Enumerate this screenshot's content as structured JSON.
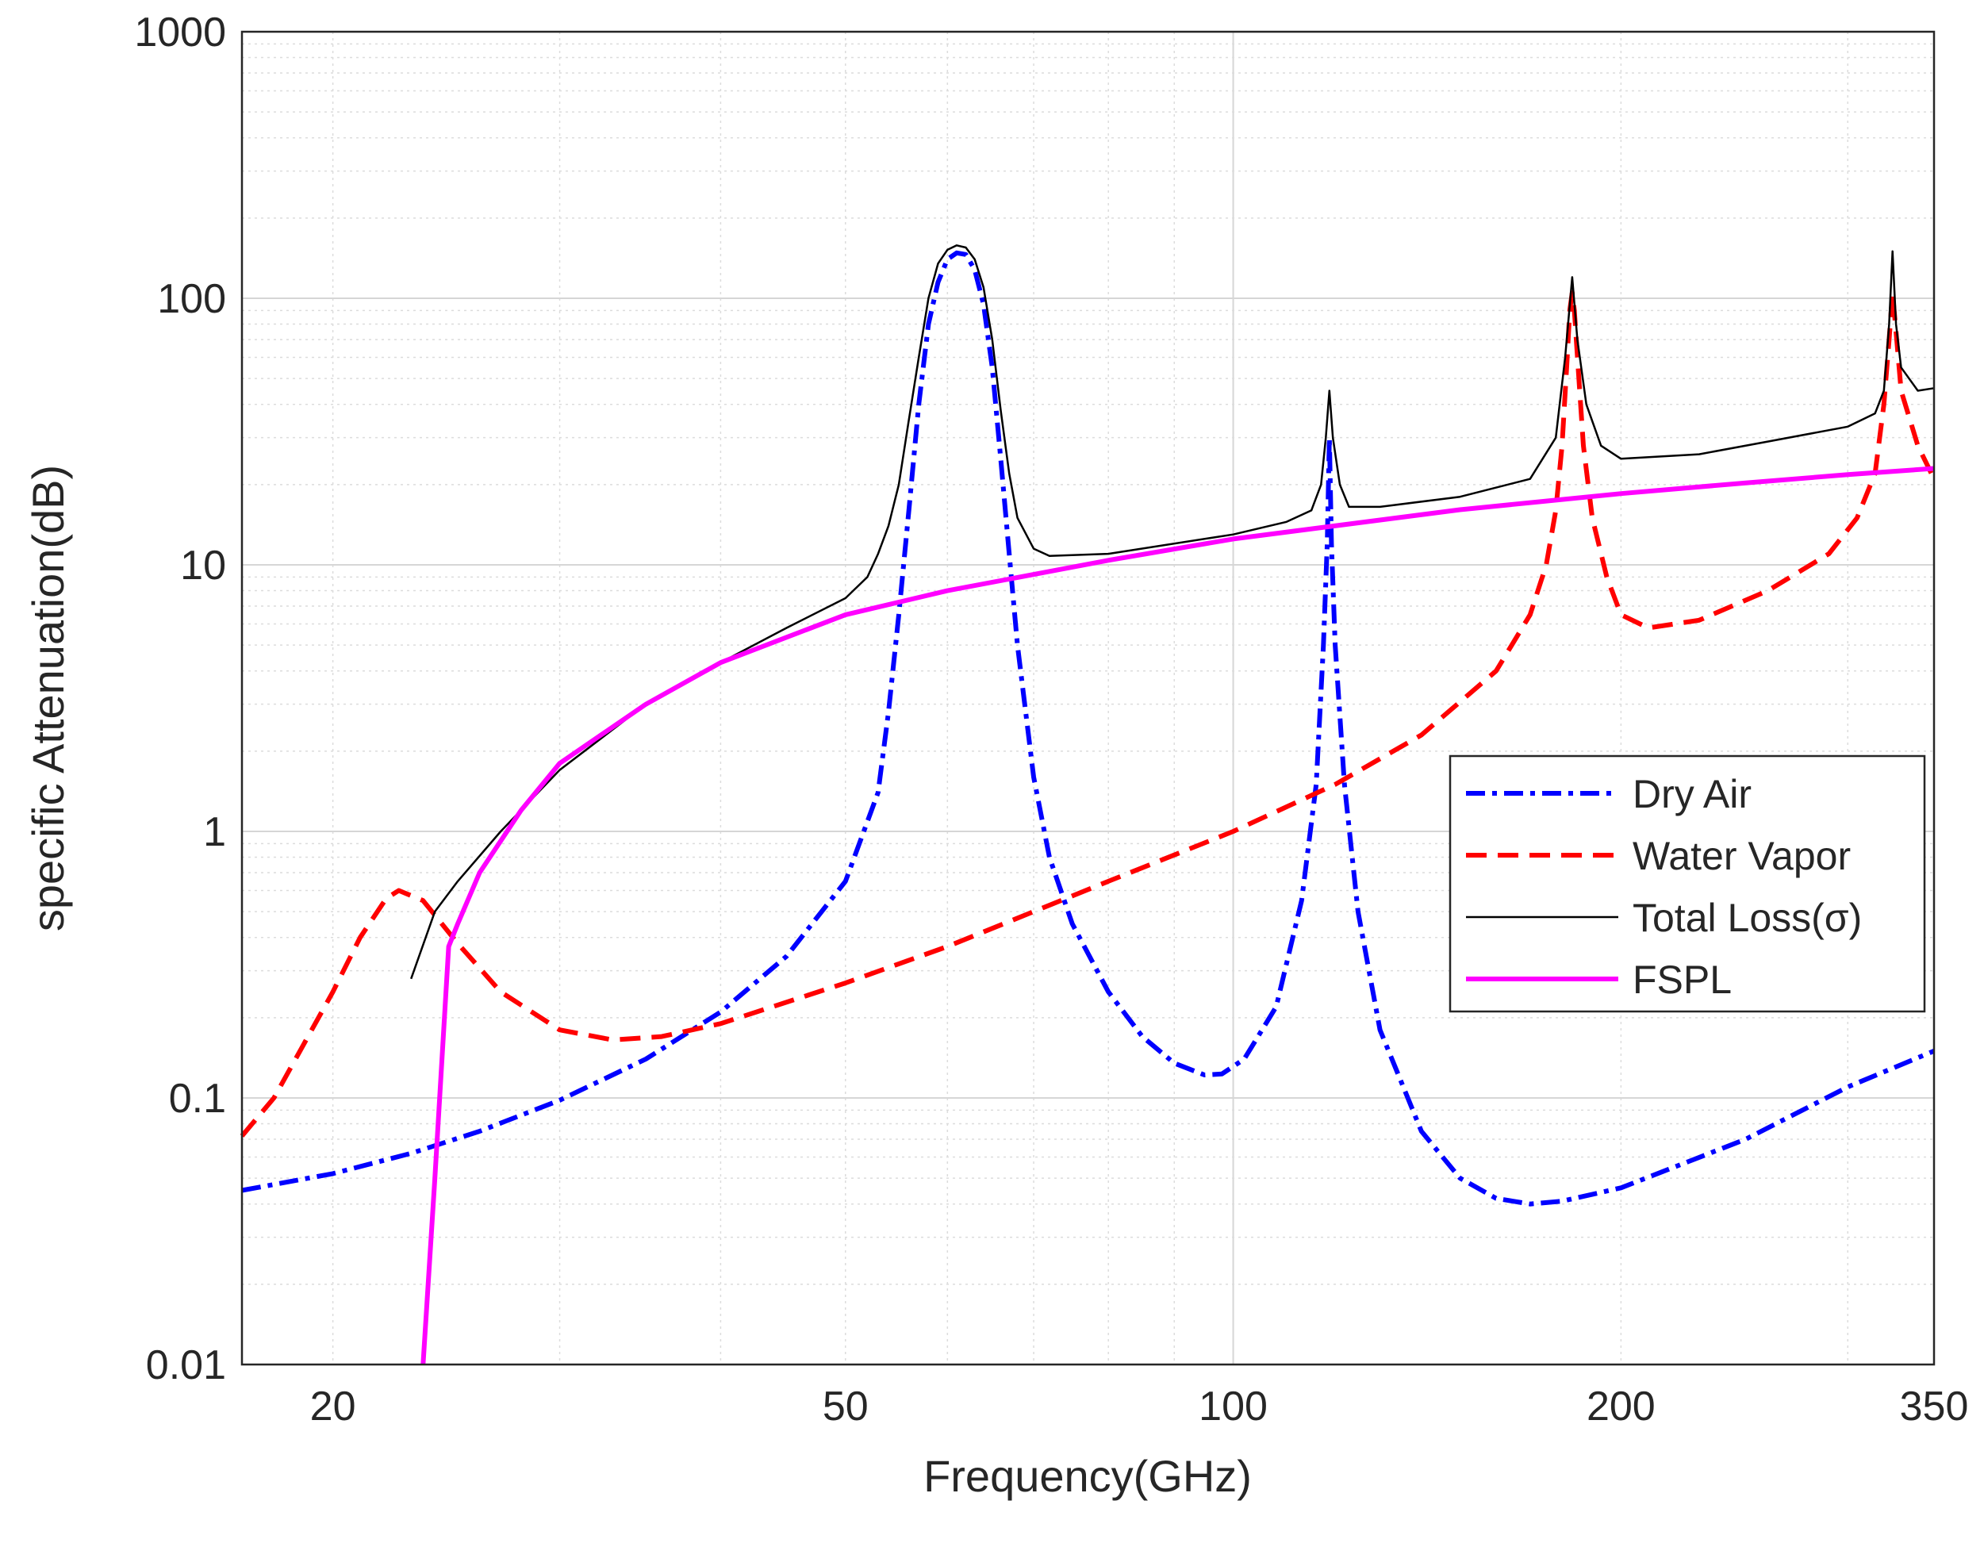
{
  "chart_data": {
    "type": "line",
    "title": "",
    "xlabel": "Frequency(GHz)",
    "ylabel": "specific Attenuation(dB)",
    "xscale": "log",
    "yscale": "log",
    "xlim": [
      17,
      350
    ],
    "ylim": [
      0.01,
      1000
    ],
    "xticks": [
      {
        "value": 20,
        "label": "20"
      },
      {
        "value": 50,
        "label": "50"
      },
      {
        "value": 100,
        "label": "100"
      },
      {
        "value": 200,
        "label": "200"
      },
      {
        "value": 350,
        "label": "350"
      }
    ],
    "yticks": [
      {
        "value": 0.01,
        "label": "0.01"
      },
      {
        "value": 0.1,
        "label": "0.1"
      },
      {
        "value": 1,
        "label": "1"
      },
      {
        "value": 10,
        "label": "10"
      },
      {
        "value": 100,
        "label": "100"
      },
      {
        "value": 1000,
        "label": "1000"
      }
    ],
    "grid": true,
    "legend_position": "right",
    "series": [
      {
        "name": "Dry Air",
        "color": "#0000ff",
        "dash": "dashdot",
        "points": [
          [
            17,
            0.045
          ],
          [
            20,
            0.052
          ],
          [
            23,
            0.062
          ],
          [
            26,
            0.075
          ],
          [
            30,
            0.098
          ],
          [
            35,
            0.14
          ],
          [
            40,
            0.21
          ],
          [
            45,
            0.34
          ],
          [
            50,
            0.65
          ],
          [
            53,
            1.4
          ],
          [
            54,
            2.8
          ],
          [
            55,
            6.5
          ],
          [
            56,
            16
          ],
          [
            57,
            40
          ],
          [
            58,
            80
          ],
          [
            59,
            115
          ],
          [
            60,
            140
          ],
          [
            61,
            148
          ],
          [
            62,
            146
          ],
          [
            63,
            128
          ],
          [
            64,
            95
          ],
          [
            65,
            55
          ],
          [
            66,
            25
          ],
          [
            67,
            11
          ],
          [
            68,
            5
          ],
          [
            70,
            1.6
          ],
          [
            72,
            0.8
          ],
          [
            75,
            0.45
          ],
          [
            80,
            0.25
          ],
          [
            85,
            0.17
          ],
          [
            90,
            0.135
          ],
          [
            95,
            0.122
          ],
          [
            98,
            0.123
          ],
          [
            102,
            0.14
          ],
          [
            108,
            0.22
          ],
          [
            113,
            0.55
          ],
          [
            116,
            1.5
          ],
          [
            117.5,
            5
          ],
          [
            118.3,
            12
          ],
          [
            118.75,
            30
          ],
          [
            119.2,
            12
          ],
          [
            120,
            5
          ],
          [
            122,
            1.5
          ],
          [
            125,
            0.5
          ],
          [
            130,
            0.18
          ],
          [
            140,
            0.075
          ],
          [
            150,
            0.05
          ],
          [
            160,
            0.042
          ],
          [
            170,
            0.04
          ],
          [
            180,
            0.041
          ],
          [
            200,
            0.046
          ],
          [
            250,
            0.07
          ],
          [
            300,
            0.11
          ],
          [
            350,
            0.15
          ]
        ]
      },
      {
        "name": "Water Vapor",
        "color": "#ff0000",
        "dash": "dashed",
        "points": [
          [
            17,
            0.072
          ],
          [
            18,
            0.1
          ],
          [
            19,
            0.16
          ],
          [
            20,
            0.25
          ],
          [
            21,
            0.4
          ],
          [
            22,
            0.56
          ],
          [
            22.5,
            0.6
          ],
          [
            23.5,
            0.55
          ],
          [
            25,
            0.38
          ],
          [
            27,
            0.25
          ],
          [
            30,
            0.18
          ],
          [
            33,
            0.165
          ],
          [
            36,
            0.17
          ],
          [
            40,
            0.19
          ],
          [
            50,
            0.27
          ],
          [
            60,
            0.37
          ],
          [
            70,
            0.5
          ],
          [
            80,
            0.65
          ],
          [
            100,
            1.0
          ],
          [
            120,
            1.5
          ],
          [
            140,
            2.3
          ],
          [
            160,
            4
          ],
          [
            170,
            6.5
          ],
          [
            175,
            10
          ],
          [
            178,
            16
          ],
          [
            180,
            28
          ],
          [
            181.5,
            55
          ],
          [
            182.5,
            90
          ],
          [
            183.3,
            105
          ],
          [
            184,
            90
          ],
          [
            185.5,
            50
          ],
          [
            187,
            28
          ],
          [
            190,
            15
          ],
          [
            195,
            9
          ],
          [
            200,
            6.5
          ],
          [
            210,
            5.8
          ],
          [
            230,
            6.2
          ],
          [
            260,
            8
          ],
          [
            290,
            11
          ],
          [
            305,
            15
          ],
          [
            315,
            22
          ],
          [
            320,
            40
          ],
          [
            323,
            70
          ],
          [
            325,
            105
          ],
          [
            327,
            75
          ],
          [
            330,
            45
          ],
          [
            340,
            28
          ],
          [
            350,
            21
          ]
        ]
      },
      {
        "name": "Total Loss(σ)",
        "color": "#000000",
        "dash": "solid",
        "points": [
          [
            23,
            0.28
          ],
          [
            24,
            0.5
          ],
          [
            25,
            0.65
          ],
          [
            27,
            1.0
          ],
          [
            30,
            1.7
          ],
          [
            35,
            3.0
          ],
          [
            40,
            4.3
          ],
          [
            45,
            5.8
          ],
          [
            50,
            7.5
          ],
          [
            52,
            9
          ],
          [
            53,
            11
          ],
          [
            54,
            14
          ],
          [
            55,
            20
          ],
          [
            56,
            35
          ],
          [
            57,
            60
          ],
          [
            58,
            100
          ],
          [
            59,
            135
          ],
          [
            60,
            152
          ],
          [
            61,
            158
          ],
          [
            62,
            155
          ],
          [
            63,
            140
          ],
          [
            64,
            110
          ],
          [
            65,
            70
          ],
          [
            66,
            38
          ],
          [
            67,
            22
          ],
          [
            68,
            15
          ],
          [
            70,
            11.5
          ],
          [
            72,
            10.8
          ],
          [
            80,
            11
          ],
          [
            100,
            13
          ],
          [
            110,
            14.5
          ],
          [
            115,
            16
          ],
          [
            117,
            20
          ],
          [
            118,
            30
          ],
          [
            118.75,
            45
          ],
          [
            119.5,
            30
          ],
          [
            121,
            20
          ],
          [
            123,
            16.5
          ],
          [
            130,
            16.5
          ],
          [
            150,
            18
          ],
          [
            170,
            21
          ],
          [
            178,
            30
          ],
          [
            181,
            60
          ],
          [
            183.3,
            120
          ],
          [
            185,
            70
          ],
          [
            188,
            40
          ],
          [
            193,
            28
          ],
          [
            200,
            25
          ],
          [
            230,
            26
          ],
          [
            260,
            29
          ],
          [
            300,
            33
          ],
          [
            315,
            37
          ],
          [
            320,
            45
          ],
          [
            323,
            80
          ],
          [
            325,
            150
          ],
          [
            327,
            80
          ],
          [
            330,
            55
          ],
          [
            340,
            45
          ],
          [
            350,
            46
          ]
        ]
      },
      {
        "name": "FSPL",
        "color": "#ff00ff",
        "dash": "solid",
        "points": [
          [
            23.5,
            0.01
          ],
          [
            24,
            0.05
          ],
          [
            24.6,
            0.37
          ],
          [
            25,
            0.45
          ],
          [
            26,
            0.7
          ],
          [
            28,
            1.2
          ],
          [
            30,
            1.8
          ],
          [
            35,
            3.0
          ],
          [
            40,
            4.3
          ],
          [
            50,
            6.5
          ],
          [
            60,
            8.0
          ],
          [
            80,
            10.4
          ],
          [
            100,
            12.5
          ],
          [
            150,
            16.1
          ],
          [
            200,
            18.5
          ],
          [
            250,
            20.3
          ],
          [
            300,
            21.8
          ],
          [
            350,
            23.0
          ]
        ]
      }
    ]
  }
}
